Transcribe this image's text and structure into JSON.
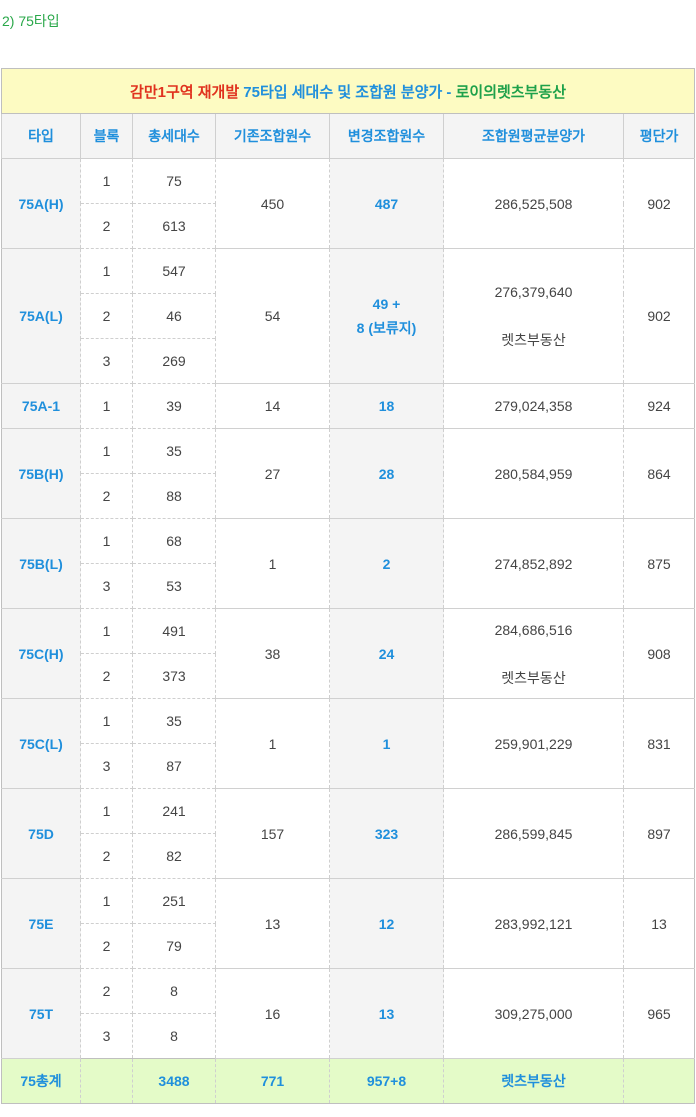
{
  "heading": "2) 75타입",
  "caption": {
    "part1": "감만1구역 재개발",
    "part2": " 75타입 세대수 및 조합원 분양가 - ",
    "part3": "로이의렛츠부동산"
  },
  "headers": [
    "타입",
    "블록",
    "총세대수",
    "기존조합원수",
    "변경조합원수",
    "조합원평균분양가",
    "평단가"
  ],
  "rows": [
    {
      "type": "75A(H)",
      "blocks": [
        "1",
        "2"
      ],
      "households": [
        "75",
        "613"
      ],
      "existing": "450",
      "changed": [
        "487"
      ],
      "avg_price": [
        "286,525,508"
      ],
      "per_pyeong": "902"
    },
    {
      "type": "75A(L)",
      "blocks": [
        "1",
        "2",
        "3"
      ],
      "households": [
        "547",
        "46",
        "269"
      ],
      "existing": "54",
      "changed": [
        "49 +",
        "8 (보류지)"
      ],
      "avg_price": [
        "276,379,640",
        "렛츠부동산"
      ],
      "per_pyeong": "902"
    },
    {
      "type": "75A-1",
      "blocks": [
        "1"
      ],
      "households": [
        "39"
      ],
      "existing": "14",
      "changed": [
        "18"
      ],
      "avg_price": [
        "279,024,358"
      ],
      "per_pyeong": "924"
    },
    {
      "type": "75B(H)",
      "blocks": [
        "1",
        "2"
      ],
      "households": [
        "35",
        "88"
      ],
      "existing": "27",
      "changed": [
        "28"
      ],
      "avg_price": [
        "280,584,959"
      ],
      "per_pyeong": "864"
    },
    {
      "type": "75B(L)",
      "blocks": [
        "1",
        "3"
      ],
      "households": [
        "68",
        "53"
      ],
      "existing": "1",
      "changed": [
        "2"
      ],
      "avg_price": [
        "274,852,892"
      ],
      "per_pyeong": "875"
    },
    {
      "type": "75C(H)",
      "blocks": [
        "1",
        "2"
      ],
      "households": [
        "491",
        "373"
      ],
      "existing": "38",
      "changed": [
        "24"
      ],
      "avg_price": [
        "284,686,516",
        "렛츠부동산"
      ],
      "per_pyeong": "908"
    },
    {
      "type": "75C(L)",
      "blocks": [
        "1",
        "3"
      ],
      "households": [
        "35",
        "87"
      ],
      "existing": "1",
      "changed": [
        "1"
      ],
      "avg_price": [
        "259,901,229"
      ],
      "per_pyeong": "831"
    },
    {
      "type": "75D",
      "blocks": [
        "1",
        "2"
      ],
      "households": [
        "241",
        "82"
      ],
      "existing": "157",
      "changed": [
        "323"
      ],
      "avg_price": [
        "286,599,845"
      ],
      "per_pyeong": "897"
    },
    {
      "type": "75E",
      "blocks": [
        "1",
        "2"
      ],
      "households": [
        "251",
        "79"
      ],
      "existing": "13",
      "changed": [
        "12"
      ],
      "avg_price": [
        "283,992,121"
      ],
      "per_pyeong": "13"
    },
    {
      "type": "75T",
      "blocks": [
        "2",
        "3"
      ],
      "households": [
        "8",
        "8"
      ],
      "existing": "16",
      "changed": [
        "13"
      ],
      "avg_price": [
        "309,275,000"
      ],
      "per_pyeong": "965"
    }
  ],
  "total": {
    "label": "75총계",
    "block": "",
    "households": "3488",
    "existing": "771",
    "changed": "957+8",
    "avg_price": "렛츠부동산",
    "per_pyeong": ""
  },
  "colors": {
    "accent_blue": "#1f8fdc",
    "caption_red": "#e0321e",
    "caption_green": "#1ea14a",
    "caption_bg": "#fdfbc2",
    "total_bg": "#e4fbc8"
  }
}
